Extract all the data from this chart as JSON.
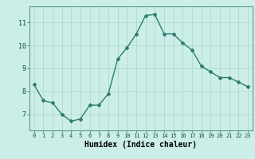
{
  "x": [
    0,
    1,
    2,
    3,
    4,
    5,
    6,
    7,
    8,
    9,
    10,
    11,
    12,
    13,
    14,
    15,
    16,
    17,
    18,
    19,
    20,
    21,
    22,
    23
  ],
  "y": [
    8.3,
    7.6,
    7.5,
    7.0,
    6.7,
    6.8,
    7.4,
    7.4,
    7.9,
    9.4,
    9.9,
    10.5,
    11.3,
    11.35,
    10.5,
    10.5,
    10.1,
    9.8,
    9.1,
    8.85,
    8.6,
    8.6,
    8.4,
    8.2
  ],
  "line_color": "#2e7d6e",
  "marker": "D",
  "marker_size": 2.0,
  "line_width": 1.0,
  "bg_color": "#cceee8",
  "grid_color": "#aad4cc",
  "xlabel": "Humidex (Indice chaleur)",
  "xlabel_fontsize": 7,
  "xlim": [
    -0.5,
    23.5
  ],
  "ylim": [
    6.3,
    11.7
  ],
  "yticks": [
    7,
    8,
    9,
    10,
    11
  ],
  "xtick_fontsize": 5,
  "ytick_fontsize": 6,
  "spine_color": "#5a9a8a"
}
